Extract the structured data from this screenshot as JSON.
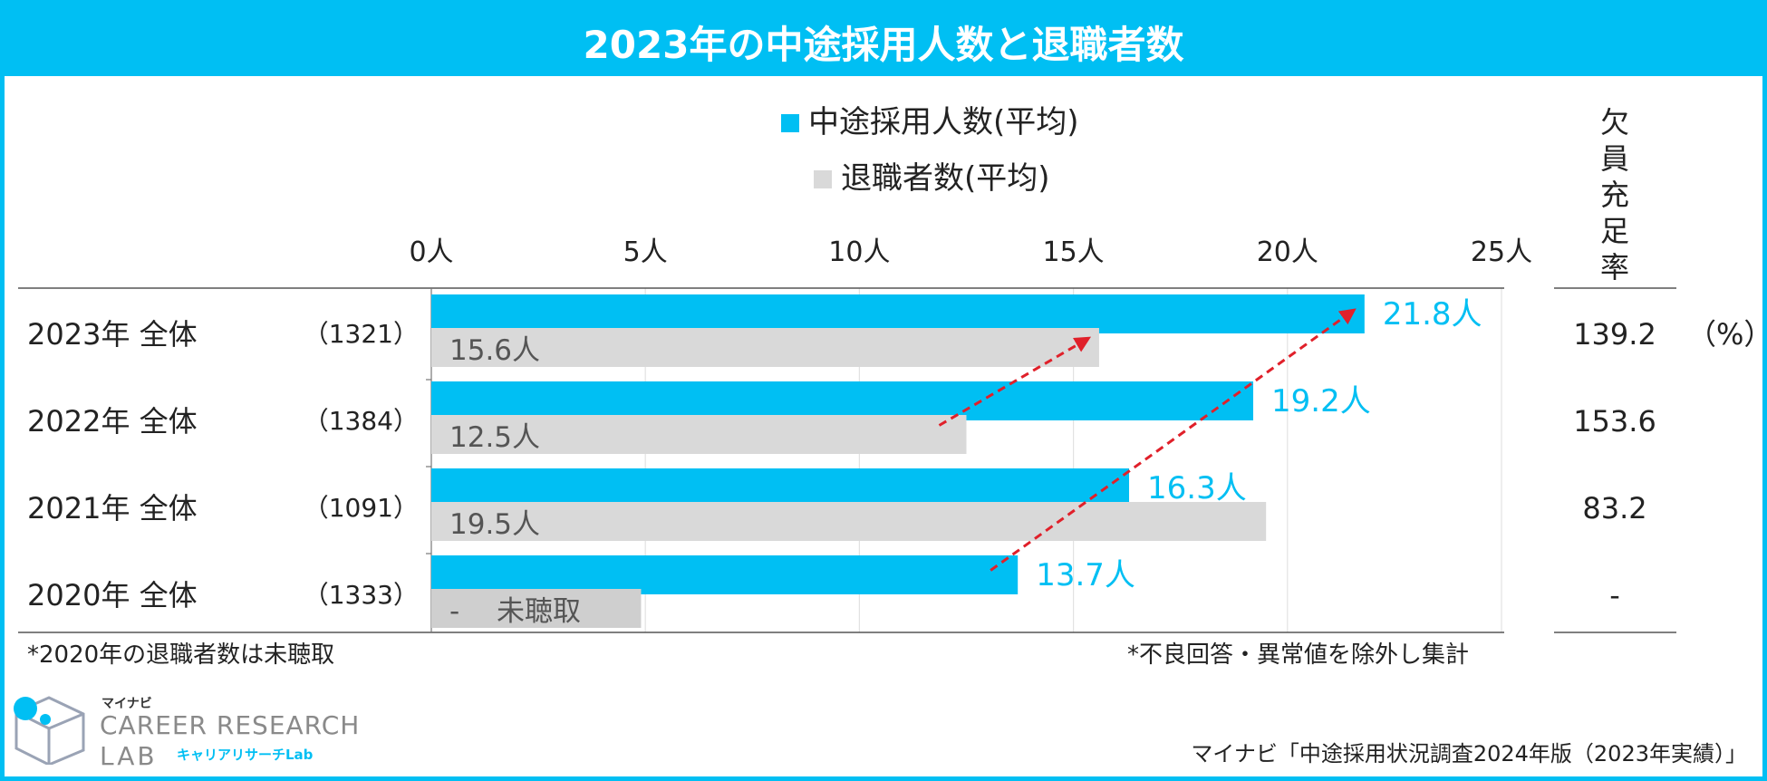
{
  "title": "2023年の中途採用人数と退職者数",
  "chart_data": {
    "type": "bar",
    "orientation": "horizontal",
    "categories": [
      {
        "label": "2023年 全体",
        "n": "（1321）"
      },
      {
        "label": "2022年 全体",
        "n": "（1384）"
      },
      {
        "label": "2021年 全体",
        "n": "（1091）"
      },
      {
        "label": "2020年 全体",
        "n": "（1333）"
      }
    ],
    "series": [
      {
        "name": "中途採用人数(平均)",
        "color": "#00bff3",
        "values": [
          21.8,
          19.2,
          16.3,
          13.7
        ],
        "labels": [
          "21.8人",
          "19.2人",
          "16.3人",
          "13.7人"
        ]
      },
      {
        "name": "退職者数(平均)",
        "color": "#d9d9d9",
        "values": [
          15.6,
          12.5,
          19.5,
          null
        ],
        "labels": [
          "15.6人",
          "12.5人",
          "19.5人",
          "-　 未聴取"
        ],
        "missing_value_display": 4.9,
        "missing_color": "#cfcfcf"
      }
    ],
    "xlim": [
      0,
      25
    ],
    "xticks": [
      0,
      5,
      10,
      15,
      20,
      25
    ],
    "xtick_labels": [
      "0人",
      "5人",
      "10人",
      "15人",
      "20人",
      "25人"
    ],
    "right_column": {
      "header": "欠員充足率",
      "values": [
        "139.2",
        "153.6",
        "83.2",
        "-"
      ],
      "unit": "（%）"
    },
    "annotations": [
      {
        "type": "dashed-arrow",
        "color": "#e0202a",
        "from": {
          "series": 1,
          "category": 1
        },
        "to": {
          "series": 1,
          "category": 0
        }
      },
      {
        "type": "dashed-arrow",
        "color": "#e0202a",
        "from": {
          "series": 0,
          "category": 3
        },
        "to": {
          "series": 0,
          "category": 0
        }
      }
    ]
  },
  "notes": {
    "left": "*2020年の退職者数は未聴取",
    "right": "*不良回答・異常値を除外し集計"
  },
  "logo": {
    "top": "マイナビ",
    "main": "CAREER RESEARCH",
    "lab": "LAB",
    "sub": "キャリアリサーチLab"
  },
  "source": "マイナビ「中途採用状況調査2024年版（2023年実績）」"
}
